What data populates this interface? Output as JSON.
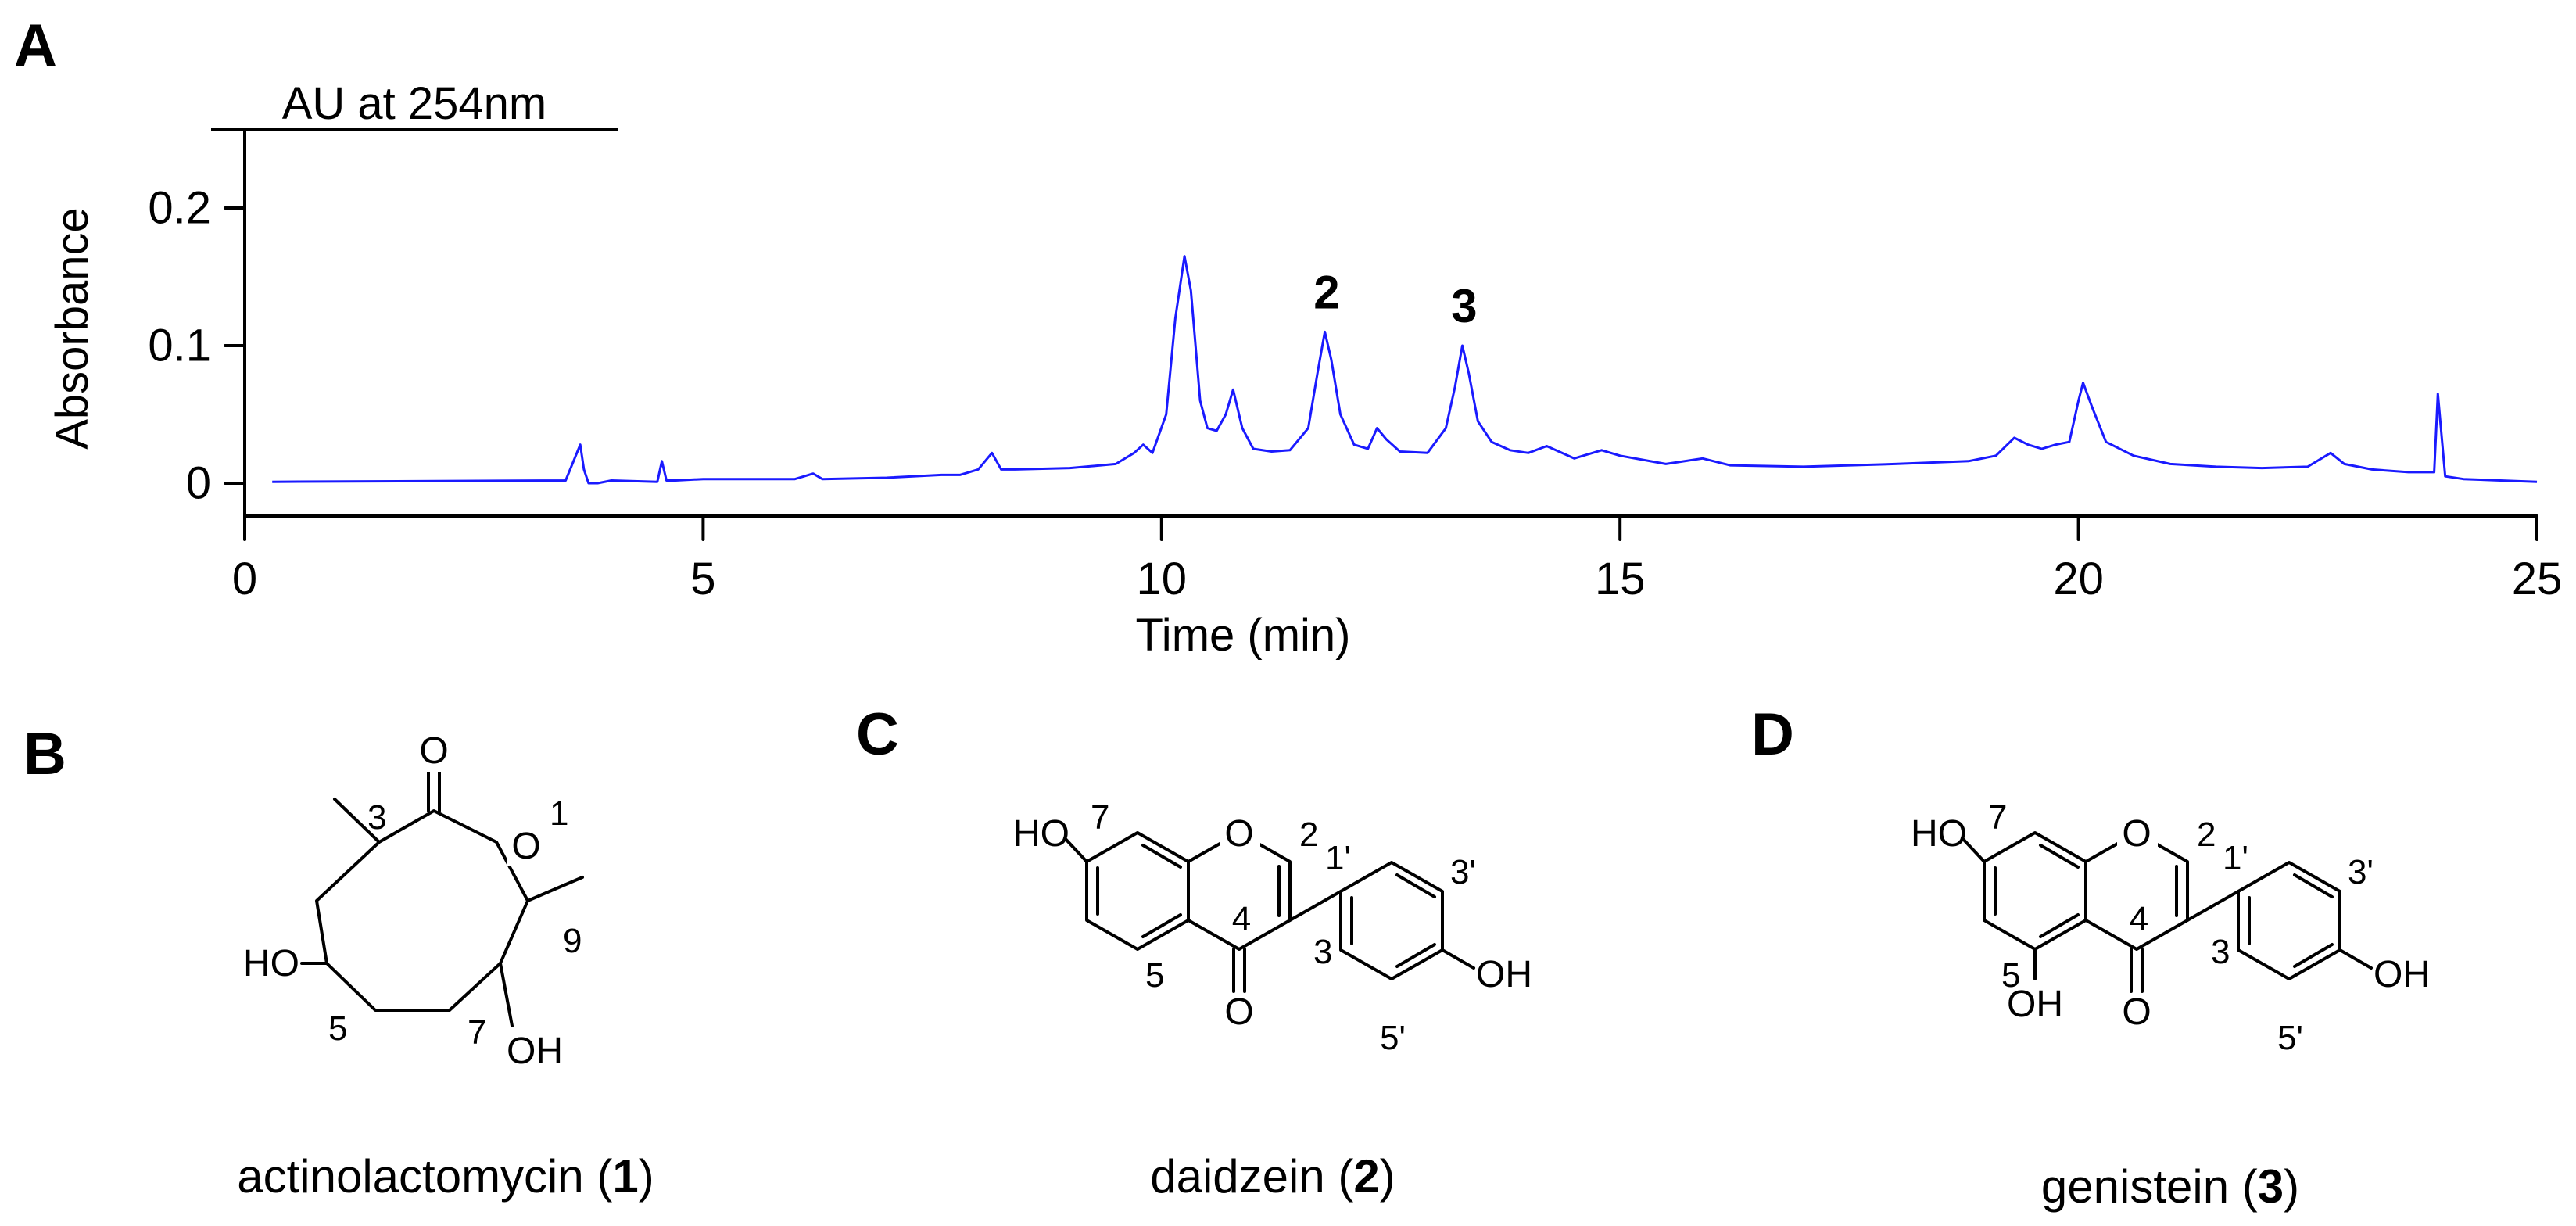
{
  "panels": {
    "a": "A",
    "b": "B",
    "c": "C",
    "d": "D"
  },
  "chart_data": {
    "type": "line",
    "title": "",
    "units_label": "AU at 254nm",
    "xlabel": "Time (min)",
    "ylabel": "Absorbance",
    "xlim": [
      0,
      25
    ],
    "ylim": [
      -0.02,
      0.25
    ],
    "x_ticks": [
      "0",
      "5",
      "10",
      "15",
      "20",
      "25"
    ],
    "y_ticks": [
      "0",
      "0.1",
      "0.2"
    ],
    "grid": false,
    "line_color": "#1a1aff",
    "peak_labels": [
      {
        "text": "2",
        "x": 11.8,
        "y": 0.11
      },
      {
        "text": "3",
        "x": 13.3,
        "y": 0.1
      }
    ],
    "series": [
      {
        "x": [
          0.3,
          3.5,
          3.66,
          3.7,
          3.75,
          3.85,
          4.0,
          4.5,
          4.55,
          4.6,
          4.7,
          5.0,
          6.0,
          6.2,
          6.3,
          7.0,
          7.6,
          7.8,
          8.0,
          8.15,
          8.25,
          8.4,
          9.0,
          9.5,
          9.7,
          9.8,
          9.9,
          10.05,
          10.15,
          10.25,
          10.32,
          10.42,
          10.5,
          10.6,
          10.7,
          10.78,
          10.88,
          11.0,
          11.2,
          11.4,
          11.6,
          11.7,
          11.78,
          11.85,
          11.95,
          12.1,
          12.25,
          12.35,
          12.45,
          12.6,
          12.9,
          13.1,
          13.2,
          13.28,
          13.35,
          13.45,
          13.6,
          13.8,
          14.0,
          14.2,
          14.5,
          14.8,
          15.0,
          15.5,
          15.9,
          16.2,
          17.0,
          18.0,
          18.8,
          19.1,
          19.3,
          19.45,
          19.6,
          19.75,
          19.9,
          20.0,
          20.05,
          20.15,
          20.3,
          20.6,
          21.0,
          21.5,
          22.0,
          22.5,
          22.75,
          22.9,
          23.2,
          23.6,
          23.88,
          23.92,
          24.0,
          24.2,
          24.6,
          25.0
        ],
        "y": [
          0.001,
          0.002,
          0.028,
          0.01,
          0.0,
          0.0,
          0.002,
          0.001,
          0.016,
          0.002,
          0.002,
          0.003,
          0.003,
          0.007,
          0.003,
          0.004,
          0.006,
          0.006,
          0.01,
          0.022,
          0.01,
          0.01,
          0.011,
          0.014,
          0.022,
          0.028,
          0.022,
          0.05,
          0.12,
          0.165,
          0.14,
          0.06,
          0.04,
          0.038,
          0.05,
          0.068,
          0.04,
          0.025,
          0.023,
          0.024,
          0.04,
          0.08,
          0.11,
          0.09,
          0.05,
          0.028,
          0.025,
          0.04,
          0.032,
          0.023,
          0.022,
          0.04,
          0.07,
          0.1,
          0.08,
          0.045,
          0.03,
          0.024,
          0.022,
          0.027,
          0.018,
          0.024,
          0.02,
          0.014,
          0.018,
          0.013,
          0.012,
          0.014,
          0.016,
          0.02,
          0.033,
          0.028,
          0.025,
          0.028,
          0.03,
          0.06,
          0.073,
          0.055,
          0.03,
          0.02,
          0.014,
          0.012,
          0.011,
          0.012,
          0.022,
          0.014,
          0.01,
          0.008,
          0.008,
          0.065,
          0.005,
          0.003,
          0.002,
          0.001
        ]
      }
    ]
  },
  "structure_b": {
    "atoms": [
      "O",
      "O",
      "HO",
      "OH"
    ],
    "numbers": [
      "3",
      "1",
      "9",
      "5",
      "7"
    ],
    "name_prefix": "actinolactomycin (",
    "name_bold": "1",
    "name_suffix": ")"
  },
  "structure_c": {
    "atoms": [
      "HO",
      "O",
      "O",
      "OH"
    ],
    "numbers": [
      "7",
      "2",
      "1'",
      "3'",
      "4",
      "3",
      "5",
      "5'"
    ],
    "name_prefix": "daidzein (",
    "name_bold": "2",
    "name_suffix": ")"
  },
  "structure_d": {
    "atoms": [
      "HO",
      "O",
      "O",
      "OH",
      "OH"
    ],
    "numbers": [
      "7",
      "2",
      "1'",
      "3'",
      "4",
      "3",
      "5",
      "5'"
    ],
    "name_prefix": "genistein (",
    "name_bold": "3",
    "name_suffix": ")"
  }
}
